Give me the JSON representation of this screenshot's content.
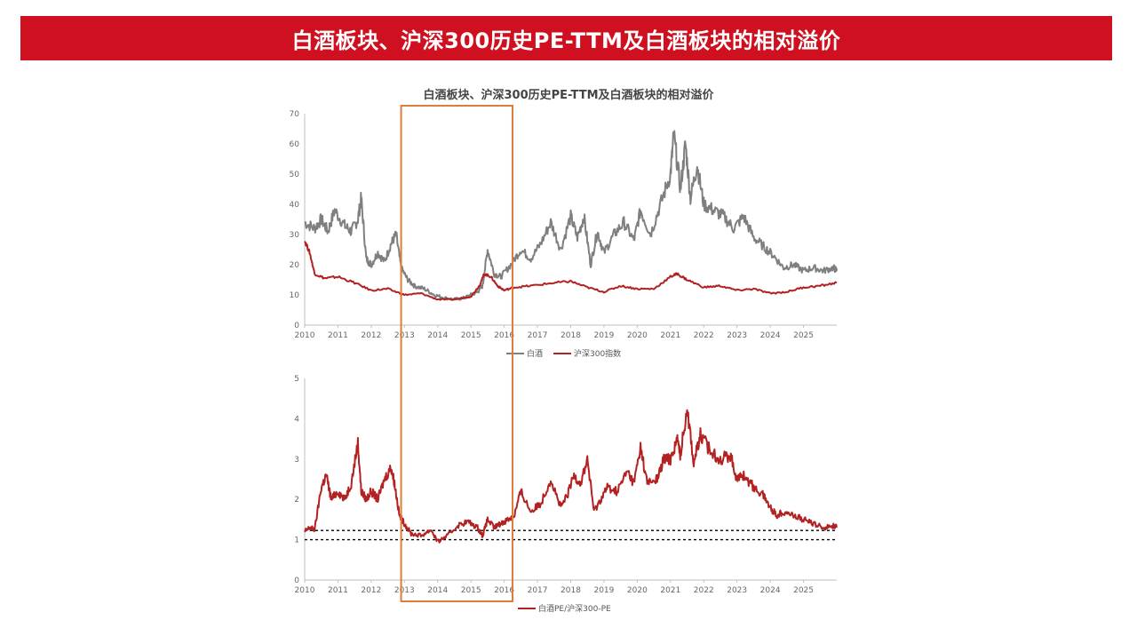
{
  "banner": {
    "title": "白酒板块、沪深300历史PE-TTM及白酒板块的相对溢价"
  },
  "chart_title": "白酒板块、沪深300历史PE-TTM及白酒板块的相对溢价",
  "colors": {
    "banner": "#cf1020",
    "baijiu": "#7f7f7f",
    "hs300": "#b22222",
    "ratio": "#b22222",
    "highlight_box": "#e07b39"
  },
  "chart_data": [
    {
      "type": "line",
      "xlim": [
        2010,
        2026
      ],
      "ylim": [
        0,
        70
      ],
      "x_ticks": [
        "2010",
        "2011",
        "2012",
        "2013",
        "2014",
        "2015",
        "2016",
        "2017",
        "2018",
        "2019",
        "2020",
        "2021",
        "2022",
        "2023",
        "2024",
        "2025"
      ],
      "y_ticks": [
        "0",
        "10",
        "20",
        "30",
        "40",
        "50",
        "60",
        "70"
      ],
      "series": [
        {
          "name": "白酒",
          "x": [
            2010.0,
            2010.3,
            2010.5,
            2010.7,
            2010.9,
            2011.2,
            2011.4,
            2011.6,
            2011.7,
            2011.85,
            2012.0,
            2012.2,
            2012.4,
            2012.6,
            2012.75,
            2012.9,
            2013.1,
            2013.3,
            2013.6,
            2013.9,
            2014.2,
            2014.5,
            2014.8,
            2015.0,
            2015.2,
            2015.35,
            2015.5,
            2015.7,
            2015.9,
            2016.2,
            2016.5,
            2016.8,
            2017.1,
            2017.4,
            2017.7,
            2018.0,
            2018.2,
            2018.4,
            2018.6,
            2018.8,
            2019.0,
            2019.3,
            2019.6,
            2019.9,
            2020.1,
            2020.4,
            2020.7,
            2021.0,
            2021.1,
            2021.3,
            2021.45,
            2021.6,
            2021.8,
            2022.0,
            2022.3,
            2022.6,
            2022.9,
            2023.2,
            2023.5,
            2023.8,
            2024.1,
            2024.4,
            2024.7,
            2025.0,
            2025.3,
            2025.6,
            2025.9,
            2026.0
          ],
          "y": [
            34,
            32,
            35,
            31,
            38,
            33,
            31,
            35,
            42,
            22,
            20,
            24,
            21,
            27,
            30,
            19,
            15,
            13,
            12,
            10,
            9,
            8.5,
            9,
            10,
            11,
            13,
            25,
            17,
            16,
            20,
            25,
            22,
            27,
            34,
            25,
            36,
            29,
            36,
            20,
            31,
            24,
            30,
            34,
            28,
            38,
            30,
            40,
            50,
            63,
            45,
            60,
            42,
            53,
            40,
            38,
            36,
            32,
            36,
            29,
            26,
            23,
            19,
            20,
            18,
            19,
            18,
            19,
            18
          ]
        },
        {
          "name": "沪深300指数",
          "x": [
            2010.0,
            2010.15,
            2010.3,
            2010.6,
            2011.0,
            2011.5,
            2012.0,
            2012.5,
            2013.0,
            2013.5,
            2014.0,
            2014.5,
            2015.0,
            2015.25,
            2015.4,
            2015.6,
            2015.8,
            2016.0,
            2016.3,
            2016.8,
            2017.5,
            2018.0,
            2018.5,
            2019.0,
            2019.5,
            2020.0,
            2020.5,
            2021.0,
            2021.2,
            2021.5,
            2022.0,
            2022.5,
            2023.0,
            2023.5,
            2024.0,
            2024.5,
            2025.0,
            2025.5,
            2026.0
          ],
          "y": [
            28,
            24,
            17,
            15.5,
            16,
            14,
            11.5,
            12,
            10,
            10.5,
            8.5,
            8.5,
            9.5,
            13,
            17,
            16,
            13,
            11.5,
            12.5,
            13,
            14,
            14.5,
            12.5,
            11,
            13,
            12,
            12,
            16,
            17,
            15,
            12.5,
            13,
            11.5,
            12,
            10.5,
            11,
            12.5,
            13,
            14
          ]
        }
      ]
    },
    {
      "type": "line",
      "xlim": [
        2010,
        2026
      ],
      "ylim": [
        0,
        5
      ],
      "x_ticks": [
        "2010",
        "2011",
        "2012",
        "2013",
        "2014",
        "2015",
        "2016",
        "2017",
        "2018",
        "2019",
        "2020",
        "2021",
        "2022",
        "2023",
        "2024",
        "2025"
      ],
      "y_ticks": [
        "0",
        "1",
        "2",
        "3",
        "4",
        "5"
      ],
      "reference_lines": [
        1.0,
        1.23
      ],
      "series": [
        {
          "name": "白酒PE/沪深300-PE",
          "x": [
            2010.0,
            2010.15,
            2010.3,
            2010.5,
            2010.65,
            2010.8,
            2011.0,
            2011.2,
            2011.4,
            2011.6,
            2011.7,
            2011.85,
            2012.0,
            2012.2,
            2012.4,
            2012.6,
            2012.7,
            2012.85,
            2013.0,
            2013.2,
            2013.5,
            2013.8,
            2014.0,
            2014.3,
            2014.6,
            2014.9,
            2015.2,
            2015.35,
            2015.5,
            2015.7,
            2015.9,
            2016.1,
            2016.3,
            2016.5,
            2016.8,
            2017.1,
            2017.4,
            2017.7,
            2017.9,
            2018.1,
            2018.3,
            2018.5,
            2018.7,
            2018.9,
            2019.1,
            2019.4,
            2019.7,
            2019.9,
            2020.1,
            2020.3,
            2020.6,
            2020.8,
            2021.0,
            2021.2,
            2021.3,
            2021.5,
            2021.7,
            2021.9,
            2022.2,
            2022.5,
            2022.8,
            2023.0,
            2023.2,
            2023.5,
            2023.8,
            2024.0,
            2024.2,
            2024.4,
            2024.7,
            2025.0,
            2025.3,
            2025.6,
            2025.9,
            2026.0
          ],
          "y": [
            1.2,
            1.3,
            1.25,
            2.3,
            2.6,
            2.0,
            2.2,
            2.0,
            2.4,
            3.4,
            2.2,
            2.0,
            2.2,
            2.0,
            2.5,
            2.8,
            2.4,
            1.6,
            1.4,
            1.15,
            1.1,
            1.25,
            0.95,
            1.1,
            1.35,
            1.45,
            1.3,
            1.1,
            1.5,
            1.3,
            1.4,
            1.5,
            1.6,
            2.2,
            1.7,
            1.9,
            2.5,
            1.8,
            2.1,
            2.6,
            2.4,
            3.0,
            1.7,
            2.0,
            2.3,
            2.2,
            2.7,
            2.4,
            3.3,
            2.4,
            2.5,
            3.0,
            3.0,
            3.5,
            3.1,
            4.3,
            2.9,
            3.6,
            3.2,
            3.0,
            3.1,
            2.5,
            2.6,
            2.3,
            2.1,
            1.8,
            1.6,
            1.7,
            1.6,
            1.5,
            1.4,
            1.3,
            1.35,
            1.3
          ]
        }
      ]
    }
  ],
  "highlight": {
    "x_start": 2012.9,
    "x_end": 2016.25
  }
}
